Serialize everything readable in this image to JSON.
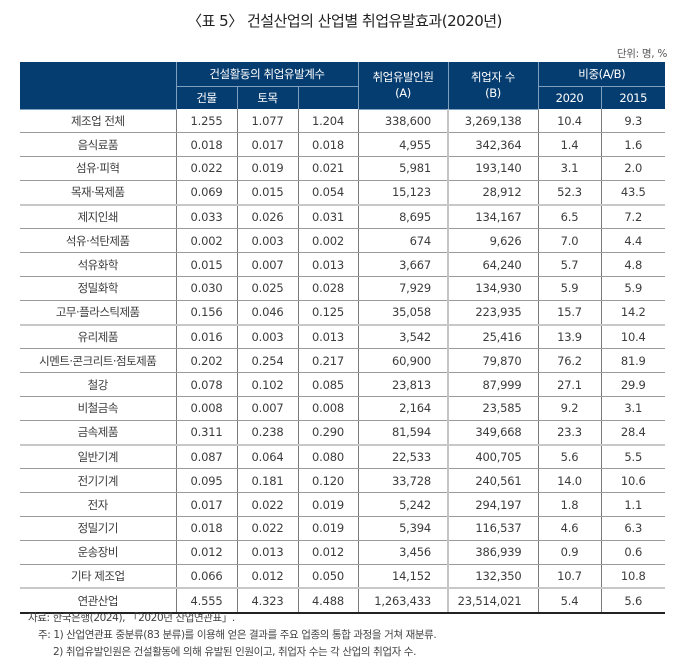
{
  "title": "〈표 5〉 건설산업의 산업별 취업유발효과(2020년)",
  "unit": "단위: 명, %",
  "header": {
    "coef_group": "건설활동의 취업유발계수",
    "coef_building": "건물",
    "coef_civil": "토목",
    "induced_line1": "취업유발인원",
    "induced_line2": "(A)",
    "employed_line1": "취업자 수",
    "employed_line2": "(B)",
    "ratio_group": "비중(A/B)",
    "ratio_2020": "2020",
    "ratio_2015": "2015"
  },
  "rows": [
    {
      "label": "제조업 전체",
      "building": "1.255",
      "civil": "1.077",
      "total": "1.204",
      "induced": "338,600",
      "employed": "3,269,138",
      "r2020": "10.4",
      "r2015": "9.3"
    },
    {
      "label": "음식료품",
      "building": "0.018",
      "civil": "0.017",
      "total": "0.018",
      "induced": "4,955",
      "employed": "342,364",
      "r2020": "1.4",
      "r2015": "1.6"
    },
    {
      "label": "섬유·피혁",
      "building": "0.022",
      "civil": "0.019",
      "total": "0.021",
      "induced": "5,981",
      "employed": "193,140",
      "r2020": "3.1",
      "r2015": "2.0"
    },
    {
      "label": "목재·목제품",
      "building": "0.069",
      "civil": "0.015",
      "total": "0.054",
      "induced": "15,123",
      "employed": "28,912",
      "r2020": "52.3",
      "r2015": "43.5"
    },
    {
      "label": "제지인쇄",
      "building": "0.033",
      "civil": "0.026",
      "total": "0.031",
      "induced": "8,695",
      "employed": "134,167",
      "r2020": "6.5",
      "r2015": "7.2"
    },
    {
      "label": "석유·석탄제품",
      "building": "0.002",
      "civil": "0.003",
      "total": "0.002",
      "induced": "674",
      "employed": "9,626",
      "r2020": "7.0",
      "r2015": "4.4"
    },
    {
      "label": "석유화학",
      "building": "0.015",
      "civil": "0.007",
      "total": "0.013",
      "induced": "3,667",
      "employed": "64,240",
      "r2020": "5.7",
      "r2015": "4.8"
    },
    {
      "label": "정밀화학",
      "building": "0.030",
      "civil": "0.025",
      "total": "0.028",
      "induced": "7,929",
      "employed": "134,930",
      "r2020": "5.9",
      "r2015": "5.9"
    },
    {
      "label": "고무·플라스틱제품",
      "building": "0.156",
      "civil": "0.046",
      "total": "0.125",
      "induced": "35,058",
      "employed": "223,935",
      "r2020": "15.7",
      "r2015": "14.2"
    },
    {
      "label": "유리제품",
      "building": "0.016",
      "civil": "0.003",
      "total": "0.013",
      "induced": "3,542",
      "employed": "25,416",
      "r2020": "13.9",
      "r2015": "10.4"
    },
    {
      "label": "시멘트·콘크리트·점토제품",
      "building": "0.202",
      "civil": "0.254",
      "total": "0.217",
      "induced": "60,900",
      "employed": "79,870",
      "r2020": "76.2",
      "r2015": "81.9"
    },
    {
      "label": "철강",
      "building": "0.078",
      "civil": "0.102",
      "total": "0.085",
      "induced": "23,813",
      "employed": "87,999",
      "r2020": "27.1",
      "r2015": "29.9"
    },
    {
      "label": "비철금속",
      "building": "0.008",
      "civil": "0.007",
      "total": "0.008",
      "induced": "2,164",
      "employed": "23,585",
      "r2020": "9.2",
      "r2015": "3.1"
    },
    {
      "label": "금속제품",
      "building": "0.311",
      "civil": "0.238",
      "total": "0.290",
      "induced": "81,594",
      "employed": "349,668",
      "r2020": "23.3",
      "r2015": "28.4"
    },
    {
      "label": "일반기계",
      "building": "0.087",
      "civil": "0.064",
      "total": "0.080",
      "induced": "22,533",
      "employed": "400,705",
      "r2020": "5.6",
      "r2015": "5.5"
    },
    {
      "label": "전기기계",
      "building": "0.095",
      "civil": "0.181",
      "total": "0.120",
      "induced": "33,728",
      "employed": "240,561",
      "r2020": "14.0",
      "r2015": "10.6"
    },
    {
      "label": "전자",
      "building": "0.017",
      "civil": "0.022",
      "total": "0.019",
      "induced": "5,242",
      "employed": "294,197",
      "r2020": "1.8",
      "r2015": "1.1"
    },
    {
      "label": "정밀기기",
      "building": "0.018",
      "civil": "0.022",
      "total": "0.019",
      "induced": "5,394",
      "employed": "116,537",
      "r2020": "4.6",
      "r2015": "6.3"
    },
    {
      "label": "운송장비",
      "building": "0.012",
      "civil": "0.013",
      "total": "0.012",
      "induced": "3,456",
      "employed": "386,939",
      "r2020": "0.9",
      "r2015": "0.6"
    },
    {
      "label": "기타 제조업",
      "building": "0.066",
      "civil": "0.012",
      "total": "0.050",
      "induced": "14,152",
      "employed": "132,350",
      "r2020": "10.7",
      "r2015": "10.8"
    },
    {
      "label": "연관산업",
      "building": "4.555",
      "civil": "4.323",
      "total": "4.488",
      "induced": "1,263,433",
      "employed": "23,514,021",
      "r2020": "5.4",
      "r2015": "5.6"
    }
  ],
  "notes": {
    "source": "자료: 한국은행(2024), 「2020년 산업연관표」.",
    "note1": "주: 1) 산업연관표 중분류(83 분류)를 이용해 얻은 결과를 주요 업종의 통합 과정을 거쳐 재분류.",
    "note2": "2) 취업유발인원은 건설활동에 의해 유발된 인원이고, 취업자 수는 각 산업의 취업자 수."
  },
  "colors": {
    "header_bg": "#063d70",
    "header_text": "#ffffff",
    "grid": "#7a7a7a"
  }
}
